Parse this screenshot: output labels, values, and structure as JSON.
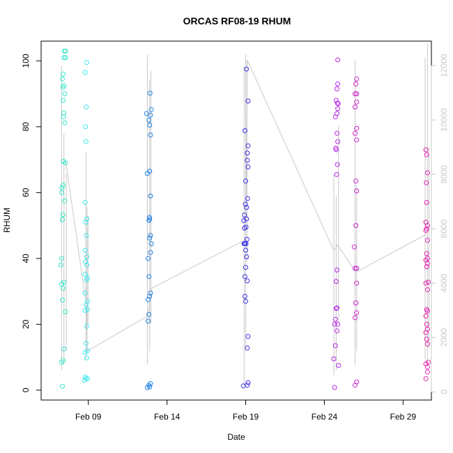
{
  "chart_data": {
    "type": "scatter",
    "title": "ORCAS RF08-19 RHUM",
    "xlabel": "Date",
    "ylabel": "RHUM",
    "x_ticks": [
      "Feb 09",
      "Feb 14",
      "Feb 19",
      "Feb 24",
      "Feb 29"
    ],
    "y_ticks": [
      "0",
      "20",
      "40",
      "60",
      "80",
      "100"
    ],
    "y2_ticks": [
      "0",
      "2000",
      "4000",
      "6000",
      "8000",
      "10000",
      "12000"
    ],
    "x_range_days": [
      6.0,
      30.8
    ],
    "x_tick_days": [
      9,
      14,
      19,
      24,
      29
    ],
    "ylim": [
      -3,
      106
    ],
    "y2lim": [
      -300,
      12900
    ],
    "y2_color": "#c8c8c8",
    "grid": false,
    "series": [
      {
        "color": "#33e6c8",
        "points": [
          [
            7.35,
            1.2
          ],
          [
            7.3,
            8.5
          ],
          [
            7.4,
            9.0
          ],
          [
            7.45,
            12.5
          ],
          [
            7.55,
            23.8
          ],
          [
            7.35,
            27.3
          ],
          [
            7.4,
            31.0
          ],
          [
            7.3,
            32.2
          ],
          [
            7.45,
            32.8
          ],
          [
            7.25,
            38.0
          ],
          [
            7.3,
            40.0
          ],
          [
            7.35,
            51.8
          ],
          [
            7.38,
            53.3
          ],
          [
            7.5,
            57.5
          ],
          [
            7.3,
            60.0
          ],
          [
            7.32,
            61.5
          ],
          [
            7.4,
            62.2
          ],
          [
            7.42,
            69.5
          ],
          [
            7.55,
            69.0
          ],
          [
            7.5,
            81.2
          ],
          [
            7.42,
            83.0
          ],
          [
            7.45,
            84.2
          ],
          [
            7.4,
            88.0
          ],
          [
            7.5,
            90.0
          ],
          [
            7.38,
            92.0
          ],
          [
            7.45,
            92.5
          ],
          [
            7.35,
            94.5
          ],
          [
            7.4,
            96.0
          ],
          [
            7.45,
            101.0
          ],
          [
            7.55,
            101.0
          ],
          [
            7.48,
            103.0
          ],
          [
            7.55,
            103.0
          ]
        ]
      },
      {
        "color": "#40e8ee",
        "points": [
          [
            8.75,
            3.0
          ],
          [
            8.85,
            3.5
          ],
          [
            8.95,
            3.5
          ],
          [
            8.8,
            4.0
          ],
          [
            8.9,
            9.8
          ],
          [
            8.8,
            11.5
          ],
          [
            8.95,
            12.0
          ],
          [
            8.85,
            14.2
          ],
          [
            8.9,
            19.4
          ],
          [
            8.8,
            24.2
          ],
          [
            8.95,
            24.5
          ],
          [
            8.85,
            26.0
          ],
          [
            8.95,
            27.0
          ],
          [
            8.78,
            29.5
          ],
          [
            8.88,
            33.5
          ],
          [
            8.95,
            34.0
          ],
          [
            8.8,
            35.2
          ],
          [
            8.9,
            38.0
          ],
          [
            8.82,
            39.0
          ],
          [
            8.9,
            40.5
          ],
          [
            8.8,
            42.5
          ],
          [
            8.88,
            47.0
          ],
          [
            8.83,
            51.0
          ],
          [
            8.9,
            52.0
          ],
          [
            8.8,
            57.0
          ],
          [
            8.85,
            75.5
          ],
          [
            8.82,
            80.0
          ],
          [
            8.87,
            86.0
          ],
          [
            8.8,
            96.5
          ],
          [
            8.9,
            99.5
          ]
        ]
      },
      {
        "color": "#1e7fe6",
        "points": [
          [
            12.75,
            0.8
          ],
          [
            12.9,
            1.0
          ],
          [
            12.85,
            1.5
          ],
          [
            12.95,
            2.0
          ],
          [
            12.8,
            21.0
          ],
          [
            12.85,
            23.0
          ],
          [
            12.8,
            27.5
          ],
          [
            12.9,
            28.5
          ],
          [
            12.95,
            29.5
          ],
          [
            12.85,
            34.5
          ],
          [
            12.8,
            40.0
          ],
          [
            12.95,
            41.8
          ],
          [
            13.0,
            44.5
          ],
          [
            12.9,
            46.2
          ],
          [
            12.95,
            47.0
          ],
          [
            12.85,
            51.5
          ],
          [
            12.9,
            52.0
          ],
          [
            12.88,
            52.5
          ],
          [
            12.95,
            59.0
          ],
          [
            12.75,
            65.8
          ],
          [
            12.9,
            66.5
          ],
          [
            12.95,
            77.5
          ],
          [
            12.9,
            80.5
          ],
          [
            12.85,
            82.0
          ],
          [
            12.95,
            83.5
          ],
          [
            12.7,
            84.0
          ],
          [
            13.0,
            85.2
          ],
          [
            12.92,
            90.2
          ]
        ]
      },
      {
        "color": "#3a30e6",
        "points": [
          [
            18.85,
            1.3
          ],
          [
            19.1,
            1.5
          ],
          [
            19.15,
            2.3
          ],
          [
            19.1,
            12.8
          ],
          [
            19.15,
            16.3
          ],
          [
            19.0,
            27.0
          ],
          [
            18.95,
            28.5
          ],
          [
            19.1,
            33.2
          ],
          [
            18.95,
            34.5
          ],
          [
            19.0,
            37.3
          ],
          [
            19.05,
            40.5
          ],
          [
            19.0,
            42.5
          ],
          [
            18.9,
            44.5
          ],
          [
            18.95,
            44.5
          ],
          [
            19.02,
            44.5
          ],
          [
            19.08,
            45.8
          ],
          [
            18.92,
            49.2
          ],
          [
            19.02,
            49.5
          ],
          [
            18.88,
            51.5
          ],
          [
            19.05,
            52.0
          ],
          [
            18.92,
            53.2
          ],
          [
            19.05,
            55.5
          ],
          [
            18.98,
            56.5
          ],
          [
            19.12,
            58.2
          ],
          [
            19.0,
            63.5
          ],
          [
            19.15,
            67.8
          ],
          [
            19.1,
            69.8
          ],
          [
            19.15,
            74.2
          ],
          [
            19.1,
            72.0
          ],
          [
            18.95,
            78.8
          ],
          [
            19.15,
            87.8
          ],
          [
            19.05,
            97.5
          ]
        ]
      },
      {
        "color": "#b824e6",
        "points": [
          [
            24.65,
            0.8
          ],
          [
            24.6,
            9.5
          ],
          [
            24.9,
            7.5
          ],
          [
            24.7,
            13.5
          ],
          [
            24.8,
            18.0
          ],
          [
            24.65,
            20.0
          ],
          [
            24.85,
            20.0
          ],
          [
            24.7,
            21.5
          ],
          [
            24.75,
            24.8
          ],
          [
            24.8,
            25.0
          ],
          [
            24.75,
            33.0
          ],
          [
            24.8,
            36.5
          ],
          [
            24.78,
            65.5
          ],
          [
            24.82,
            68.5
          ],
          [
            24.75,
            73.0
          ],
          [
            24.72,
            73.5
          ],
          [
            24.85,
            75.5
          ],
          [
            24.8,
            78.0
          ],
          [
            24.7,
            83.0
          ],
          [
            24.8,
            84.0
          ],
          [
            24.85,
            85.5
          ],
          [
            24.88,
            87.0
          ],
          [
            24.82,
            87.2
          ],
          [
            24.75,
            88.0
          ],
          [
            24.8,
            91.5
          ],
          [
            24.85,
            93.0
          ],
          [
            24.85,
            100.3
          ]
        ]
      },
      {
        "color": "#cc22cc",
        "points": [
          [
            25.95,
            1.5
          ],
          [
            26.05,
            2.5
          ],
          [
            25.95,
            22.0
          ],
          [
            26.05,
            23.5
          ],
          [
            26.0,
            26.5
          ],
          [
            26.05,
            32.5
          ],
          [
            25.95,
            37.0
          ],
          [
            26.05,
            37.0
          ],
          [
            25.9,
            43.5
          ],
          [
            26.0,
            50.0
          ],
          [
            26.05,
            60.5
          ],
          [
            26.0,
            63.5
          ],
          [
            26.05,
            76.0
          ],
          [
            25.95,
            78.0
          ],
          [
            26.05,
            79.5
          ],
          [
            25.95,
            86.0
          ],
          [
            26.05,
            87.5
          ],
          [
            26.05,
            90.0
          ],
          [
            25.95,
            90.0
          ],
          [
            26.0,
            93.0
          ],
          [
            26.05,
            94.5
          ]
        ]
      },
      {
        "color": "#e620b0",
        "points": [
          [
            30.45,
            3.5
          ],
          [
            30.55,
            5.5
          ],
          [
            30.55,
            7.0
          ],
          [
            30.45,
            8.0
          ],
          [
            30.6,
            8.5
          ],
          [
            30.55,
            14.0
          ],
          [
            30.5,
            15.5
          ],
          [
            30.45,
            17.5
          ],
          [
            30.55,
            18.5
          ],
          [
            30.5,
            20.0
          ],
          [
            30.45,
            22.5
          ],
          [
            30.55,
            24.0
          ],
          [
            30.5,
            24.5
          ],
          [
            30.55,
            30.5
          ],
          [
            30.45,
            32.5
          ],
          [
            30.6,
            32.8
          ],
          [
            30.5,
            37.5
          ],
          [
            30.55,
            38.5
          ],
          [
            30.45,
            39.5
          ],
          [
            30.55,
            40.0
          ],
          [
            30.5,
            41.5
          ],
          [
            30.55,
            45.5
          ],
          [
            30.45,
            48.5
          ],
          [
            30.5,
            49.0
          ],
          [
            30.55,
            50.0
          ],
          [
            30.45,
            51.0
          ],
          [
            30.5,
            57.0
          ],
          [
            30.48,
            63.0
          ],
          [
            30.55,
            66.0
          ],
          [
            30.5,
            71.5
          ],
          [
            30.45,
            73.0
          ]
        ]
      }
    ],
    "y2_series": {
      "color": "#c8c8c8",
      "trend": [
        [
          7.3,
          8400
        ],
        [
          7.55,
          8500
        ],
        [
          8.85,
          3300
        ],
        [
          8.95,
          1500
        ],
        [
          12.8,
          2800
        ],
        [
          13.0,
          3800
        ],
        [
          19.0,
          5600
        ],
        [
          19.1,
          12200
        ],
        [
          24.6,
          5200
        ],
        [
          24.85,
          5400
        ],
        [
          26.0,
          4400
        ],
        [
          30.5,
          5800
        ]
      ],
      "spikes": [
        [
          7.3,
          800,
          12000
        ],
        [
          7.45,
          1000,
          9500
        ],
        [
          7.6,
          1500,
          8000
        ],
        [
          8.85,
          1200,
          8800
        ],
        [
          8.92,
          1500,
          6800
        ],
        [
          8.98,
          2500,
          6500
        ],
        [
          12.75,
          1000,
          12400
        ],
        [
          12.9,
          1500,
          11500
        ],
        [
          12.98,
          2500,
          11800
        ],
        [
          18.9,
          200,
          12000
        ],
        [
          19.0,
          1500,
          12400
        ],
        [
          19.08,
          4800,
          12200
        ],
        [
          24.6,
          600,
          8000
        ],
        [
          24.75,
          800,
          7200
        ],
        [
          24.9,
          2500,
          9800
        ],
        [
          25.95,
          1000,
          12200
        ],
        [
          26.05,
          1500,
          7600
        ],
        [
          30.4,
          1200,
          12300
        ],
        [
          30.55,
          1000,
          12800
        ],
        [
          30.65,
          1600,
          9000
        ]
      ]
    }
  }
}
